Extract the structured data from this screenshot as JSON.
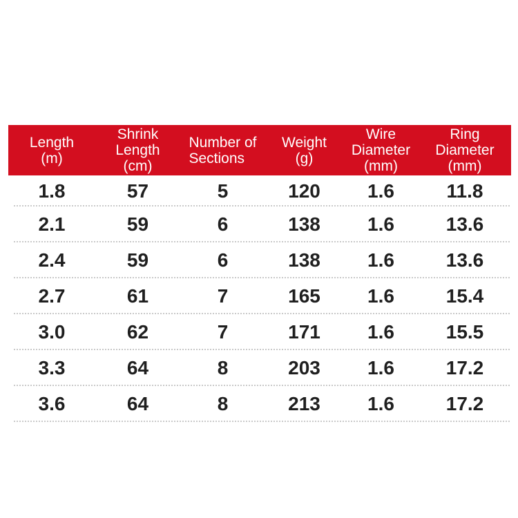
{
  "colors": {
    "header_background": "#d30e1f",
    "header_text": "#ffffff",
    "body_text": "#1f1f1f",
    "separator": "#c9c9c9",
    "page_background": "#ffffff"
  },
  "table": {
    "columns": [
      {
        "id": "length",
        "label_lines": [
          "Length",
          "(m)"
        ]
      },
      {
        "id": "shrink_length",
        "label_lines": [
          "Shrink",
          "Length",
          "(cm)"
        ]
      },
      {
        "id": "number_of_sections",
        "label_lines": [
          "Number of",
          "Sections"
        ]
      },
      {
        "id": "weight",
        "label_lines": [
          "Weight",
          "(g)"
        ]
      },
      {
        "id": "wire_diameter",
        "label_lines": [
          "Wire",
          "Diameter",
          "(mm)"
        ]
      },
      {
        "id": "ring_diameter",
        "label_lines": [
          "Ring",
          "Diameter",
          "(mm)"
        ]
      }
    ],
    "rows": [
      [
        "1.8",
        "57",
        "5",
        "120",
        "1.6",
        "11.8"
      ],
      [
        "2.1",
        "59",
        "6",
        "138",
        "1.6",
        "13.6"
      ],
      [
        "2.4",
        "59",
        "6",
        "138",
        "1.6",
        "13.6"
      ],
      [
        "2.7",
        "61",
        "7",
        "165",
        "1.6",
        "15.4"
      ],
      [
        "3.0",
        "62",
        "7",
        "171",
        "1.6",
        "15.5"
      ],
      [
        "3.3",
        "64",
        "8",
        "203",
        "1.6",
        "17.2"
      ],
      [
        "3.6",
        "64",
        "8",
        "213",
        "1.6",
        "17.2"
      ]
    ]
  },
  "chart_data": {
    "type": "table",
    "title": "",
    "columns": [
      "Length (m)",
      "Shrink Length (cm)",
      "Number of Sections",
      "Weight (g)",
      "Wire Diameter (mm)",
      "Ring Diameter (mm)"
    ],
    "rows": [
      [
        1.8,
        57,
        5,
        120,
        1.6,
        11.8
      ],
      [
        2.1,
        59,
        6,
        138,
        1.6,
        13.6
      ],
      [
        2.4,
        59,
        6,
        138,
        1.6,
        13.6
      ],
      [
        2.7,
        61,
        7,
        165,
        1.6,
        15.4
      ],
      [
        3.0,
        62,
        7,
        171,
        1.6,
        15.5
      ],
      [
        3.3,
        64,
        8,
        203,
        1.6,
        17.2
      ],
      [
        3.6,
        64,
        8,
        213,
        1.6,
        17.2
      ]
    ]
  }
}
